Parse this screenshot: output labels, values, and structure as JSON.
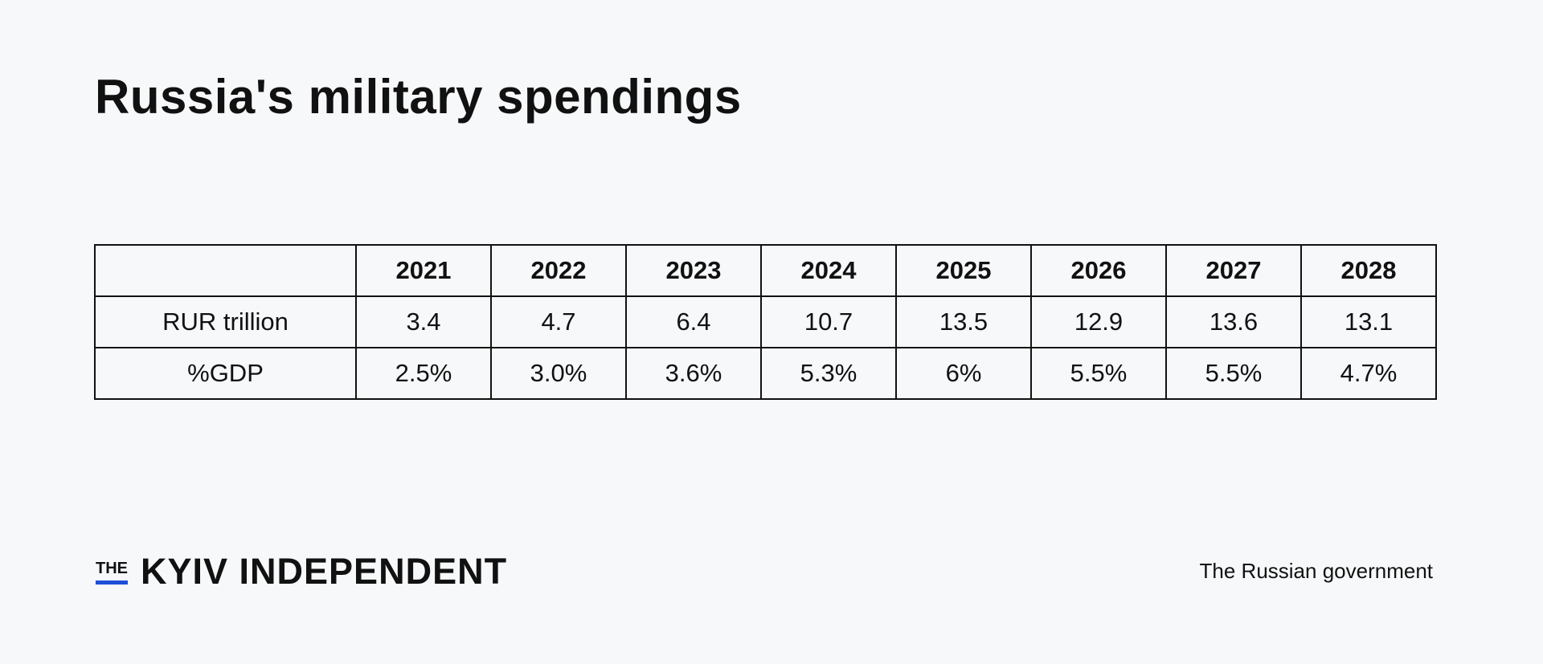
{
  "title": "Russia's military spendings",
  "chart_data": {
    "type": "table",
    "columns": [
      "",
      "2021",
      "2022",
      "2023",
      "2024",
      "2025",
      "2026",
      "2027",
      "2028"
    ],
    "rows": [
      {
        "label": "RUR trillion",
        "values": [
          "3.4",
          "4.7",
          "6.4",
          "10.7",
          "13.5",
          "12.9",
          "13.6",
          "13.1"
        ]
      },
      {
        "label": "%GDP",
        "values": [
          "2.5%",
          "3.0%",
          "3.6%",
          "5.3%",
          "6%",
          "5.5%",
          "5.5%",
          "4.7%"
        ]
      }
    ]
  },
  "logo": {
    "the": "THE",
    "name": "KYIV INDEPENDENT",
    "accent_color": "#1d4fd8"
  },
  "source": "The Russian government",
  "colors": {
    "background": "#f7f8fa",
    "text": "#111111"
  }
}
